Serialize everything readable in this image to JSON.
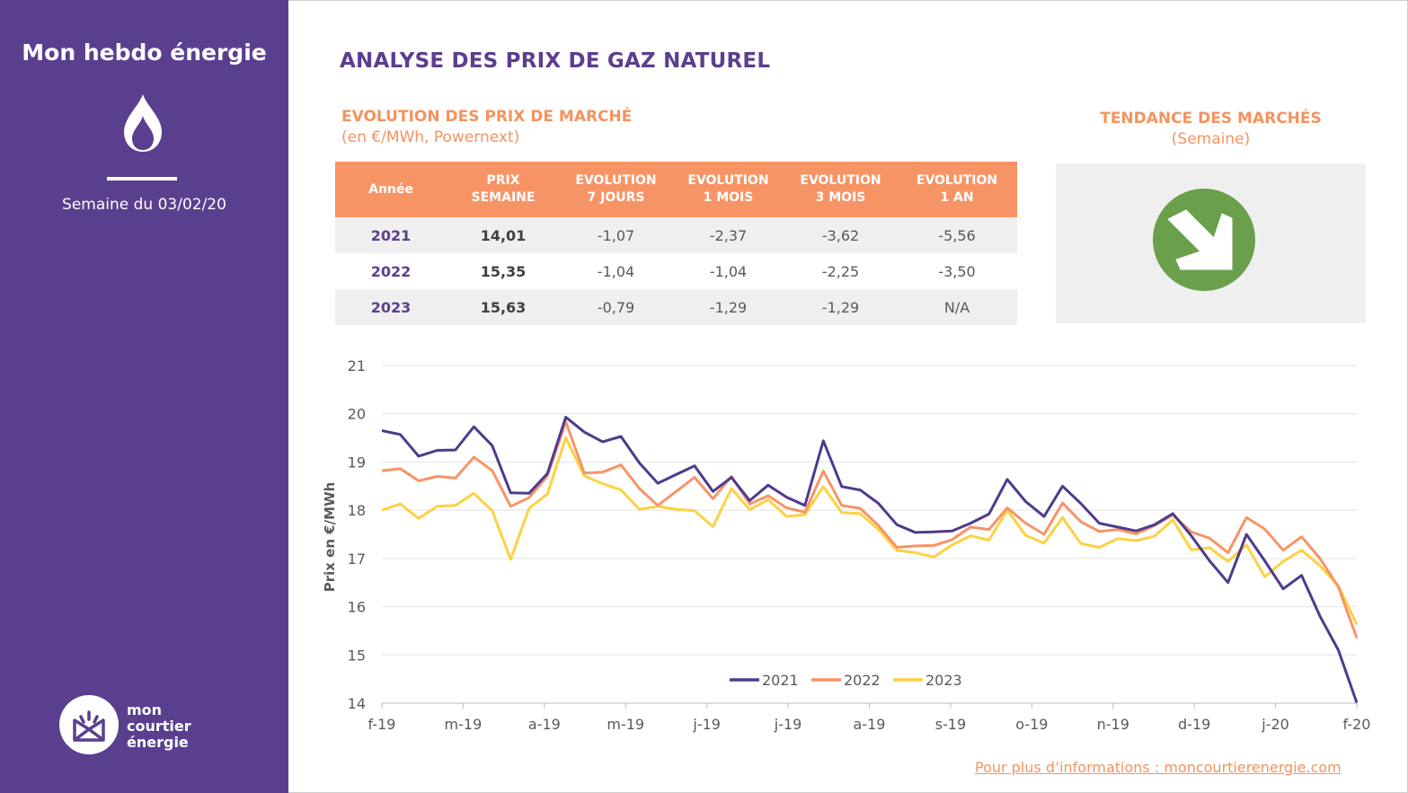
{
  "sidebar": {
    "title": "Mon hebdo énergie",
    "icon": "flame-icon",
    "week": "Semaine du 03/02/20",
    "logo_lines": [
      "mon",
      "courtier",
      "énergie"
    ]
  },
  "header": {
    "title": "ANALYSE DES PRIX DE GAZ NATUREL",
    "section_title": "EVOLUTION DES PRIX DE MARCHÉ",
    "section_unit": "(en €/MWh, Powernext)"
  },
  "table": {
    "headers": [
      "Année",
      "PRIX\nSEMAINE",
      "EVOLUTION\n7 JOURS",
      "EVOLUTION\n1 MOIS",
      "EVOLUTION\n3 MOIS",
      "EVOLUTION\n1 AN"
    ],
    "rows": [
      [
        "2021",
        "14,01",
        "-1,07",
        "-2,37",
        "-3,62",
        "-5,56"
      ],
      [
        "2022",
        "15,35",
        "-1,04",
        "-1,04",
        "-2,25",
        "-3,50"
      ],
      [
        "2023",
        "15,63",
        "-0,79",
        "-1,29",
        "-1,29",
        "N/A"
      ]
    ]
  },
  "trend": {
    "title": "TENDANCE DES MARCHÉS",
    "subtitle": "(Semaine)",
    "icon": "arrow-down-right-icon",
    "color": "#6aa04c"
  },
  "footer": {
    "link": "Pour plus d’informations : moncourtierenergie.com"
  },
  "colors": {
    "purple": "#5b3f8f",
    "orange": "#f79466",
    "yellow": "#fdd144"
  },
  "chart_data": {
    "type": "line",
    "ylabel": "Prix en €/MWh",
    "ylim": [
      14,
      21
    ],
    "yticks": [
      14,
      15,
      16,
      17,
      18,
      19,
      20,
      21
    ],
    "x_tick_labels": [
      "f-19",
      "m-19",
      "a-19",
      "m-19",
      "j-19",
      "j-19",
      "a-19",
      "s-19",
      "o-19",
      "n-19",
      "d-19",
      "j-20",
      "f-20"
    ],
    "grid": true,
    "legend_position": "bottom-center",
    "series": [
      {
        "name": "2021",
        "color": "#4e3b8c",
        "values": [
          19.65,
          19.57,
          19.12,
          19.24,
          19.25,
          19.73,
          19.34,
          18.36,
          18.35,
          18.76,
          19.93,
          19.62,
          19.42,
          19.53,
          18.98,
          18.56,
          18.74,
          18.92,
          18.39,
          18.68,
          18.2,
          18.52,
          18.27,
          18.1,
          19.44,
          18.49,
          18.42,
          18.14,
          17.7,
          17.54,
          17.55,
          17.57,
          17.73,
          17.92,
          18.64,
          18.18,
          17.87,
          18.5,
          18.14,
          17.73,
          17.65,
          17.57,
          17.7,
          17.93,
          17.47,
          16.95,
          16.5,
          17.5,
          16.95,
          16.37,
          16.65,
          15.8,
          15.1,
          14.01
        ]
      },
      {
        "name": "2022",
        "color": "#f79466",
        "values": [
          18.82,
          18.86,
          18.61,
          18.7,
          18.67,
          19.1,
          18.82,
          18.08,
          18.26,
          18.71,
          19.83,
          18.77,
          18.79,
          18.94,
          18.45,
          18.1,
          18.39,
          18.68,
          18.24,
          18.7,
          18.13,
          18.3,
          18.05,
          17.96,
          18.81,
          18.1,
          18.04,
          17.68,
          17.23,
          17.26,
          17.27,
          17.39,
          17.65,
          17.6,
          18.05,
          17.73,
          17.5,
          18.15,
          17.76,
          17.56,
          17.6,
          17.51,
          17.68,
          17.9,
          17.55,
          17.42,
          17.12,
          17.85,
          17.61,
          17.17,
          17.45,
          17.0,
          16.41,
          15.35
        ]
      },
      {
        "name": "2023",
        "color": "#fdd144",
        "values": [
          18.0,
          18.13,
          17.83,
          18.08,
          18.1,
          18.35,
          17.99,
          16.98,
          18.04,
          18.34,
          19.5,
          18.71,
          18.55,
          18.42,
          18.02,
          18.08,
          18.02,
          17.99,
          17.66,
          18.45,
          18.01,
          18.22,
          17.87,
          17.91,
          18.49,
          17.95,
          17.93,
          17.6,
          17.17,
          17.12,
          17.03,
          17.28,
          17.47,
          17.38,
          18.0,
          17.48,
          17.32,
          17.85,
          17.31,
          17.23,
          17.41,
          17.37,
          17.46,
          17.8,
          17.18,
          17.22,
          16.94,
          17.28,
          16.62,
          16.94,
          17.17,
          16.85,
          16.43,
          15.63
        ]
      }
    ]
  }
}
